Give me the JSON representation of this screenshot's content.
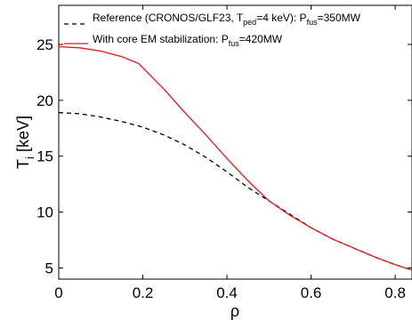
{
  "chart_data": {
    "type": "line",
    "xlabel": "ρ",
    "ylabel": {
      "main": "T",
      "sub": "i",
      "unit": " [keV]"
    },
    "xlim": [
      0,
      0.84
    ],
    "ylim": [
      4,
      28.5
    ],
    "xticks": [
      0,
      0.2,
      0.4,
      0.6,
      0.8
    ],
    "xtick_labels": [
      "0",
      "0.2",
      "0.4",
      "0.6",
      "0.8"
    ],
    "yticks": [
      5,
      10,
      15,
      20,
      25
    ],
    "ytick_labels": [
      "5",
      "10",
      "15",
      "20",
      "25"
    ],
    "grid": false,
    "legend_placement": "top",
    "series": [
      {
        "name": "Reference (CRONOS/GLF23, T_ped=4 keV): P_fus=350MW",
        "legend": {
          "t1": "Reference (CRONOS/GLF23, T",
          "s1": "ped",
          "t2": "=4 keV): P",
          "s2": "fus",
          "t3": "=350MW"
        },
        "style": "dashed",
        "color": "#000000",
        "x": [
          0,
          0.05,
          0.1,
          0.15,
          0.2,
          0.25,
          0.3,
          0.35,
          0.4,
          0.45,
          0.5,
          0.55,
          0.6,
          0.65,
          0.7,
          0.75,
          0.8,
          0.84
        ],
        "y": [
          18.9,
          18.8,
          18.5,
          18.1,
          17.6,
          16.9,
          16.0,
          14.9,
          13.6,
          12.2,
          11.0,
          9.8,
          8.6,
          7.6,
          6.8,
          6.0,
          5.3,
          4.8
        ]
      },
      {
        "name": "With core EM stabilization: P_fus=420MW",
        "legend": {
          "t1": "With core EM stabilization: P",
          "s1": "fus",
          "t2": "=420MW"
        },
        "style": "solid",
        "color": "#e8141c",
        "x": [
          0,
          0.05,
          0.1,
          0.15,
          0.19,
          0.25,
          0.3,
          0.35,
          0.4,
          0.45,
          0.5,
          0.55,
          0.6,
          0.65,
          0.7,
          0.75,
          0.8,
          0.84
        ],
        "y": [
          24.8,
          24.7,
          24.4,
          23.9,
          23.3,
          21.0,
          18.9,
          16.9,
          14.8,
          12.8,
          11.0,
          9.7,
          8.6,
          7.6,
          6.8,
          6.0,
          5.3,
          4.8
        ]
      }
    ]
  }
}
